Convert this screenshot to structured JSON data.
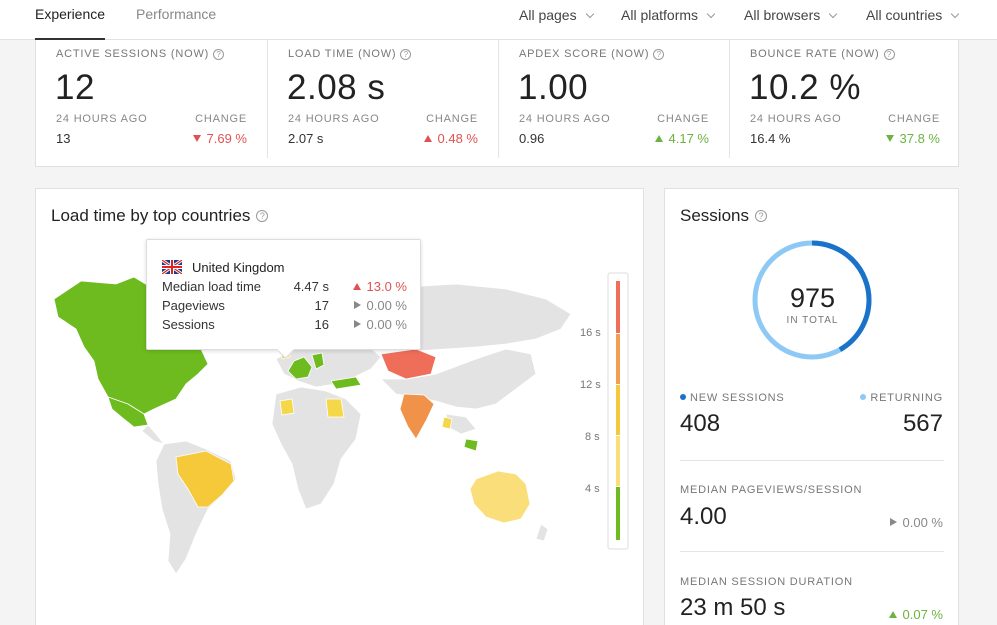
{
  "tabs": [
    {
      "label": "Experience",
      "active": true
    },
    {
      "label": "Performance",
      "active": false
    }
  ],
  "filters": [
    "All pages",
    "All platforms",
    "All browsers",
    "All countries"
  ],
  "kpis": [
    {
      "label": "ACTIVE SESSIONS (NOW)",
      "value": "12",
      "sub_label": "24 HOURS AGO",
      "change_label": "CHANGE",
      "previous": "13",
      "change": "7.69 %",
      "direction": "down",
      "tone": "red"
    },
    {
      "label": "LOAD TIME (NOW)",
      "value": "2.08 s",
      "sub_label": "24 HOURS AGO",
      "change_label": "CHANGE",
      "previous": "2.07 s",
      "change": "0.48 %",
      "direction": "up",
      "tone": "red"
    },
    {
      "label": "APDEX SCORE (NOW)",
      "value": "1.00",
      "sub_label": "24 HOURS AGO",
      "change_label": "CHANGE",
      "previous": "0.96",
      "change": "4.17 %",
      "direction": "up",
      "tone": "green"
    },
    {
      "label": "BOUNCE RATE (NOW)",
      "value": "10.2 %",
      "sub_label": "24 HOURS AGO",
      "change_label": "CHANGE",
      "previous": "16.4 %",
      "change": "37.8 %",
      "direction": "down",
      "tone": "green"
    }
  ],
  "map_card": {
    "title": "Load time by top countries",
    "tooltip": {
      "country": "United Kingdom",
      "rows": [
        {
          "label": "Median load time",
          "value": "4.47 s",
          "change": "13.0 %",
          "direction": "up"
        },
        {
          "label": "Pageviews",
          "value": "17",
          "change": "0.00 %",
          "direction": "flat"
        },
        {
          "label": "Sessions",
          "value": "16",
          "change": "0.00 %",
          "direction": "flat"
        }
      ]
    },
    "legend": [
      "16 s",
      "12 s",
      "8 s",
      "4 s"
    ],
    "colors": {
      "fast": "#6dbb1e",
      "medium": "#f5d74a",
      "slow": "#f0924a",
      "slowest": "#ef6e5a",
      "nodata": "#e3e3e3"
    }
  },
  "sessions_card": {
    "title": "Sessions",
    "total": "975",
    "total_label": "IN TOTAL",
    "new_label": "NEW SESSIONS",
    "new_value": "408",
    "returning_label": "RETURNING",
    "returning_value": "567",
    "new_fraction": 0.418,
    "new_color": "#1a73c8",
    "returning_color": "#8ec9f5",
    "pageviews_label": "MEDIAN PAGEVIEWS/SESSION",
    "pageviews_value": "4.00",
    "pageviews_change": "0.00 %",
    "duration_label": "MEDIAN SESSION DURATION",
    "duration_value": "23 m 50 s",
    "duration_change": "0.07 %"
  }
}
